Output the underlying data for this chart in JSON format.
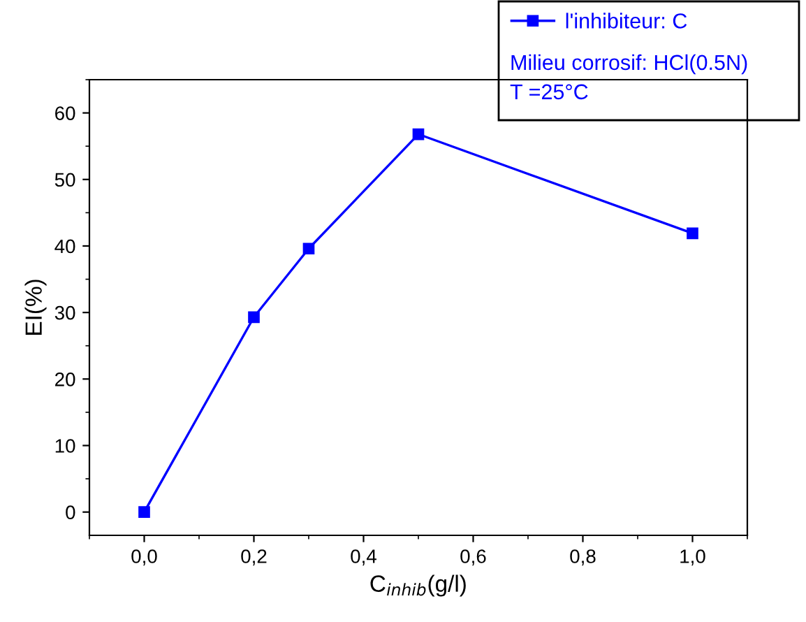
{
  "chart_data": {
    "type": "line",
    "xlabel": "C$_{inhib}$(g/l)",
    "ylabel": "EI(%)",
    "x": [
      0,
      0.2,
      0.3,
      0.5,
      1.0
    ],
    "series": [
      {
        "name": "l'inhibiteur: C",
        "color": "#0000ff",
        "values": [
          0,
          29.3,
          39.6,
          56.8,
          41.9
        ]
      }
    ],
    "xlim": [
      -0.1,
      1.1
    ],
    "xticks": [
      {
        "value": 0,
        "label": "0,0"
      },
      {
        "value": 0.2,
        "label": "0,2"
      },
      {
        "value": 0.4,
        "label": "0,4"
      },
      {
        "value": 0.6,
        "label": "0,6"
      },
      {
        "value": 0.8,
        "label": "0,8"
      },
      {
        "value": 1.0,
        "label": "1,0"
      }
    ],
    "ylim": [
      -3.5,
      65
    ],
    "yticks": [
      0,
      10,
      20,
      30,
      40,
      50,
      60
    ],
    "annotations": [
      "Milieu corrosif: HCl(0.5N)",
      "T =25°C"
    ],
    "legend": "top right",
    "marker": "square",
    "line_style": "solid",
    "grid": false
  }
}
